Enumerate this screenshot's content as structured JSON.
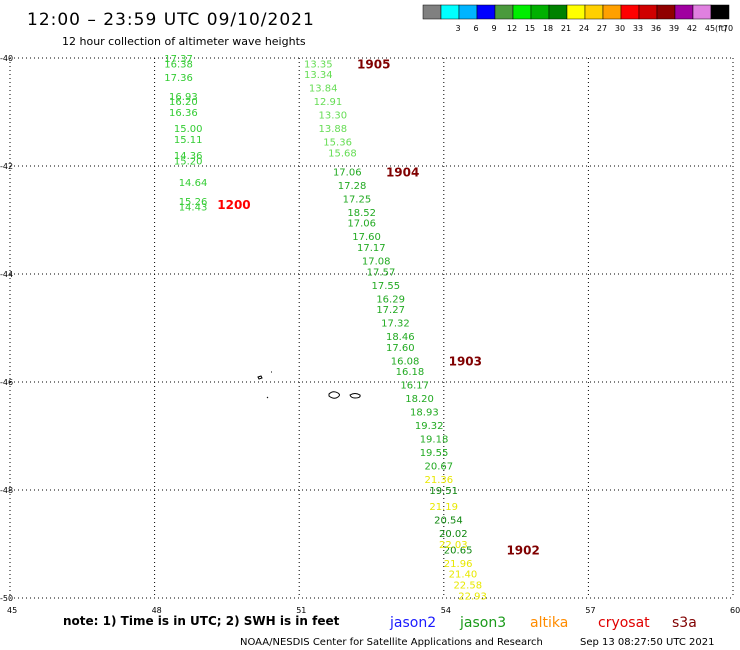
{
  "header": {
    "title": "12:00 – 23:59 UTC 09/10/2021",
    "subtitle": "12 hour collection of altimeter wave heights"
  },
  "legend": {
    "unit": "(ft)",
    "swatches": [
      {
        "label": "",
        "color": "#808080"
      },
      {
        "label": "3",
        "color": "#00ffff"
      },
      {
        "label": "6",
        "color": "#00b4ff"
      },
      {
        "label": "9",
        "color": "#0000ff"
      },
      {
        "label": "12",
        "color": "#4a9a3c"
      },
      {
        "label": "15",
        "color": "#00ee00"
      },
      {
        "label": "18",
        "color": "#00b000"
      },
      {
        "label": "21",
        "color": "#008200"
      },
      {
        "label": "24",
        "color": "#ffff00"
      },
      {
        "label": "27",
        "color": "#ffd000"
      },
      {
        "label": "30",
        "color": "#ffa000"
      },
      {
        "label": "33",
        "color": "#ff0000"
      },
      {
        "label": "36",
        "color": "#d00000"
      },
      {
        "label": "39",
        "color": "#900000"
      },
      {
        "label": "42",
        "color": "#a000a0"
      },
      {
        "label": "45",
        "color": "#e080e0"
      },
      {
        "label": "70",
        "color": "#000000"
      }
    ]
  },
  "footer": {
    "note": "note: 1) Time is in UTC; 2) SWH is in feet",
    "satellites": [
      {
        "name": "jason2",
        "color": "#1a1aff"
      },
      {
        "name": "jason3",
        "color": "#1a9a1a"
      },
      {
        "name": "altika",
        "color": "#ff8c00"
      },
      {
        "name": "cryosat",
        "color": "#e00000"
      },
      {
        "name": "s3a",
        "color": "#800000"
      }
    ],
    "credit": "NOAA/NESDIS Center for Satellite Applications and Research",
    "timestamp": "Sep 13 08:27:50 UTC 2021"
  },
  "chart_data": {
    "type": "scatter",
    "title": "12:00 – 23:59 UTC 09/10/2021",
    "subtitle": "12 hour collection of altimeter wave heights",
    "xlabel": "",
    "ylabel": "",
    "xlim": [
      45,
      60
    ],
    "ylim": [
      -50,
      -40
    ],
    "x_ticks": [
      "45",
      "48",
      "51",
      "54",
      "57",
      "60"
    ],
    "y_ticks": [
      "-40",
      "-42",
      "-44",
      "-46",
      "-48",
      "-50"
    ],
    "grid": true,
    "series": [
      {
        "name": "track-1200",
        "color": "#33cc33",
        "points": [
          {
            "x": 48.2,
            "y": -40.0,
            "v": "17.37"
          },
          {
            "x": 48.2,
            "y": -40.1,
            "v": "16.38"
          },
          {
            "x": 48.2,
            "y": -40.35,
            "v": "17.36"
          },
          {
            "x": 48.3,
            "y": -40.7,
            "v": "16.93"
          },
          {
            "x": 48.3,
            "y": -40.8,
            "v": "16.20"
          },
          {
            "x": 48.3,
            "y": -41.0,
            "v": "16.36"
          },
          {
            "x": 48.4,
            "y": -41.3,
            "v": "15.00"
          },
          {
            "x": 48.4,
            "y": -41.5,
            "v": "15.11"
          },
          {
            "x": 48.4,
            "y": -41.8,
            "v": "14.36"
          },
          {
            "x": 48.4,
            "y": -41.9,
            "v": "15.20"
          },
          {
            "x": 48.5,
            "y": -42.3,
            "v": "14.64"
          },
          {
            "x": 48.5,
            "y": -42.65,
            "v": "15.26"
          },
          {
            "x": 48.5,
            "y": -42.75,
            "v": "14.43"
          }
        ]
      },
      {
        "name": "track-1905",
        "color": "#66dd55",
        "points": [
          {
            "x": 51.1,
            "y": -40.1,
            "v": "13.35"
          },
          {
            "x": 51.1,
            "y": -40.3,
            "v": "13.34"
          },
          {
            "x": 51.2,
            "y": -40.55,
            "v": "13.84"
          },
          {
            "x": 51.3,
            "y": -40.8,
            "v": "12.91"
          },
          {
            "x": 51.4,
            "y": -41.05,
            "v": "13.30"
          },
          {
            "x": 51.4,
            "y": -41.3,
            "v": "13.88"
          },
          {
            "x": 51.5,
            "y": -41.55,
            "v": "15.36"
          },
          {
            "x": 51.6,
            "y": -41.75,
            "v": "15.68"
          }
        ]
      },
      {
        "name": "track-1904-1903",
        "color": "#22aa22",
        "points": [
          {
            "x": 51.7,
            "y": -42.1,
            "v": "17.06"
          },
          {
            "x": 51.8,
            "y": -42.35,
            "v": "17.28"
          },
          {
            "x": 51.9,
            "y": -42.6,
            "v": "17.25"
          },
          {
            "x": 52.0,
            "y": -42.85,
            "v": "18.52"
          },
          {
            "x": 52.0,
            "y": -43.05,
            "v": "17.06"
          },
          {
            "x": 52.1,
            "y": -43.3,
            "v": "17.60"
          },
          {
            "x": 52.2,
            "y": -43.5,
            "v": "17.17"
          },
          {
            "x": 52.3,
            "y": -43.75,
            "v": "17.08"
          },
          {
            "x": 52.4,
            "y": -43.95,
            "v": "17.57"
          },
          {
            "x": 52.5,
            "y": -44.2,
            "v": "17.55"
          },
          {
            "x": 52.6,
            "y": -44.45,
            "v": "16.29"
          },
          {
            "x": 52.6,
            "y": -44.65,
            "v": "17.27"
          },
          {
            "x": 52.7,
            "y": -44.9,
            "v": "17.32"
          },
          {
            "x": 52.8,
            "y": -45.15,
            "v": "18.46"
          },
          {
            "x": 52.8,
            "y": -45.35,
            "v": "17.60"
          },
          {
            "x": 52.9,
            "y": -45.6,
            "v": "16.08"
          },
          {
            "x": 53.0,
            "y": -45.8,
            "v": "16.18"
          },
          {
            "x": 53.1,
            "y": -46.05,
            "v": "16.17"
          },
          {
            "x": 53.2,
            "y": -46.3,
            "v": "18.20"
          },
          {
            "x": 53.3,
            "y": -46.55,
            "v": "18.93"
          },
          {
            "x": 53.4,
            "y": -46.8,
            "v": "19.32"
          },
          {
            "x": 53.5,
            "y": -47.05,
            "v": "19.18"
          },
          {
            "x": 53.5,
            "y": -47.3,
            "v": "19.55"
          },
          {
            "x": 53.6,
            "y": -47.55,
            "v": "20.67"
          }
        ]
      },
      {
        "name": "track-1902",
        "color": "#118811",
        "points": [
          {
            "x": 53.7,
            "y": -48.0,
            "v": "19.51"
          },
          {
            "x": 53.8,
            "y": -48.55,
            "v": "20.54"
          },
          {
            "x": 53.9,
            "y": -48.8,
            "v": "20.02"
          },
          {
            "x": 54.0,
            "y": -49.1,
            "v": "20.65"
          }
        ]
      },
      {
        "name": "track-1902-yellow",
        "color": "#e8e800",
        "points": [
          {
            "x": 53.6,
            "y": -47.8,
            "v": "21.36"
          },
          {
            "x": 53.7,
            "y": -48.3,
            "v": "21.19"
          },
          {
            "x": 53.9,
            "y": -49.0,
            "v": "22.03"
          },
          {
            "x": 54.0,
            "y": -49.35,
            "v": "21.96"
          },
          {
            "x": 54.1,
            "y": -49.55,
            "v": "21.40"
          },
          {
            "x": 54.2,
            "y": -49.75,
            "v": "22.58"
          },
          {
            "x": 54.3,
            "y": -49.95,
            "v": "22.93"
          }
        ]
      }
    ],
    "time_labels": [
      {
        "x": 49.3,
        "y": -42.7,
        "label": "1200",
        "color": "#ff0000"
      },
      {
        "x": 52.2,
        "y": -40.1,
        "label": "1905",
        "color": "#800000"
      },
      {
        "x": 52.8,
        "y": -42.1,
        "label": "1904",
        "color": "#800000"
      },
      {
        "x": 54.1,
        "y": -45.6,
        "label": "1903",
        "color": "#800000"
      },
      {
        "x": 55.3,
        "y": -49.1,
        "label": "1902",
        "color": "#800000"
      }
    ]
  }
}
